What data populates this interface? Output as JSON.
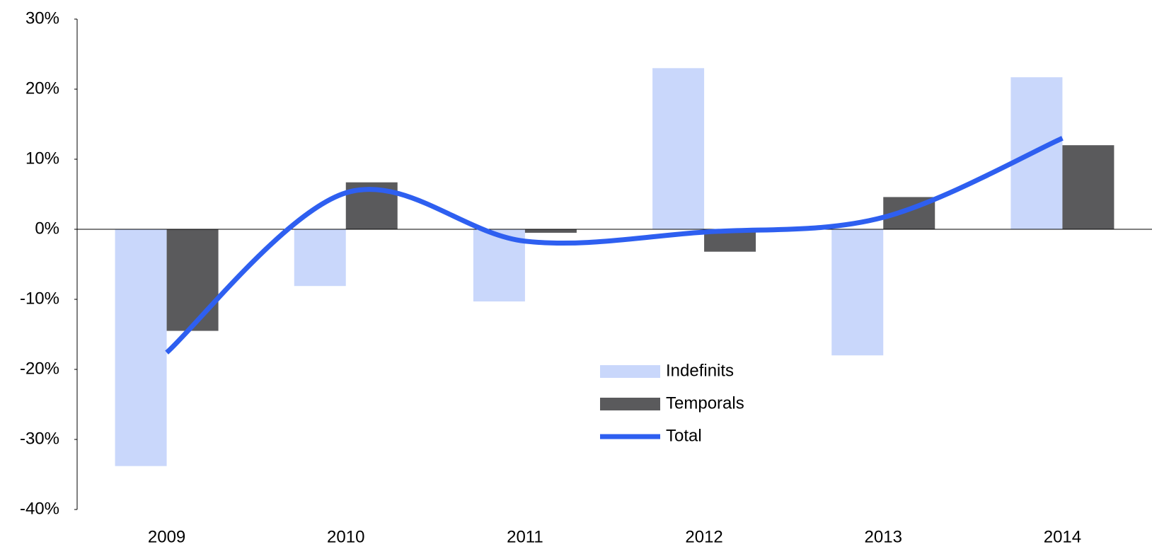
{
  "chart_data": {
    "type": "bar_line",
    "categories": [
      "2009",
      "2010",
      "2011",
      "2012",
      "2013",
      "2014"
    ],
    "series": [
      {
        "name": "Indefinits",
        "type": "bar",
        "color": "#c9d7fb",
        "values": [
          -33.8,
          -8.1,
          -10.3,
          23.0,
          -18.0,
          21.7
        ]
      },
      {
        "name": "Temporals",
        "type": "bar",
        "color": "#5a5a5c",
        "values": [
          -14.5,
          6.7,
          -0.5,
          -3.2,
          4.6,
          12.0
        ]
      },
      {
        "name": "Total",
        "type": "line",
        "color": "#2e5ff0",
        "values": [
          -17.6,
          5.2,
          -1.7,
          -0.4,
          1.7,
          13.0
        ]
      }
    ],
    "ylim": [
      -40,
      30
    ],
    "yticks": [
      {
        "value": -40,
        "label": "-40%"
      },
      {
        "value": -30,
        "label": "-30%"
      },
      {
        "value": -20,
        "label": "-20%"
      },
      {
        "value": -10,
        "label": "-10%"
      },
      {
        "value": 0,
        "label": "0%"
      },
      {
        "value": 10,
        "label": "10%"
      },
      {
        "value": 20,
        "label": "20%"
      },
      {
        "value": 30,
        "label": "30%"
      }
    ],
    "grid": false,
    "legend": "bottom-center"
  }
}
